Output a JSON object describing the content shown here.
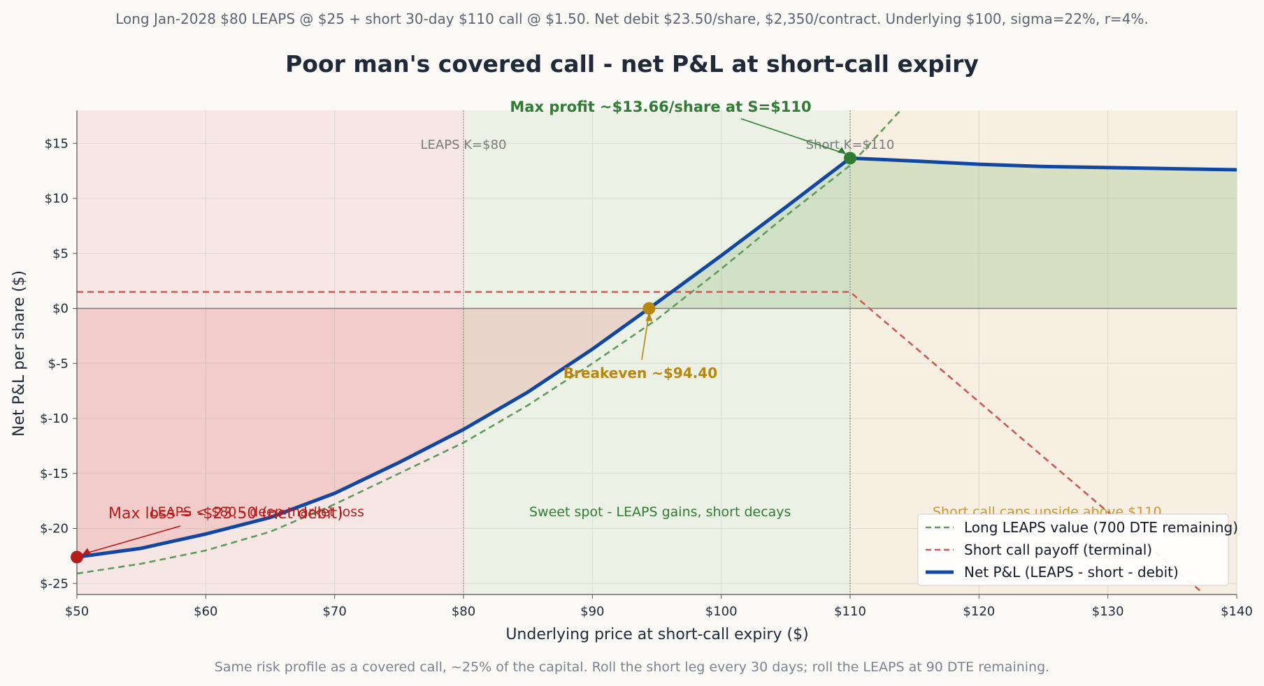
{
  "header": {
    "subtitle": "Long Jan-2028 $80 LEAPS @ $25 + short 30-day $110 call @ $1.50. Net debit $23.50/share, $2,350/contract. Underlying $100, sigma=22%, r=4%.",
    "footer": "Same risk profile as a covered call, ~25% of the capital. Roll the short leg every 30 days; roll the LEAPS at 90 DTE remaining."
  },
  "colors": {
    "net": "#0f47a1",
    "leaps": "#5e9a5a",
    "short": "#cc5a52",
    "profit_marker": "#2e7d32",
    "breakeven_marker": "#b8860b",
    "loss_marker": "#b71c1c",
    "region_loss": "#f6e6e4",
    "region_sweet": "#ecf1e5",
    "region_cap": "#f7efe1"
  },
  "chart_data": {
    "type": "line",
    "title": "Poor man's covered call - net P&L at short-call expiry",
    "xlabel": "Underlying price at short-call expiry ($)",
    "ylabel": "Net P&L per share ($)",
    "xlim": [
      50,
      140
    ],
    "ylim": [
      -26,
      18
    ],
    "xticks": [
      50,
      60,
      70,
      80,
      90,
      100,
      110,
      120,
      130,
      140
    ],
    "xtick_labels": [
      "$50",
      "$60",
      "$70",
      "$80",
      "$90",
      "$100",
      "$110",
      "$120",
      "$130",
      "$140"
    ],
    "yticks": [
      15,
      10,
      5,
      0,
      -5,
      -10,
      -15,
      -20,
      -25
    ],
    "ytick_labels": [
      "$15",
      "$10",
      "$5",
      "$0",
      "$-5",
      "$-10",
      "$-15",
      "$-20",
      "$-25"
    ],
    "grid": true,
    "legend_position": "bottom-right",
    "series": [
      {
        "name": "Long LEAPS value (700 DTE remaining)",
        "style": "dashed",
        "x": [
          50,
          55,
          60,
          65,
          70,
          75,
          80,
          85,
          90,
          95,
          100,
          105,
          110,
          113.9
        ],
        "y": [
          -24.1,
          -23.2,
          -22.0,
          -20.3,
          -17.8,
          -15.0,
          -12.2,
          -8.8,
          -5.0,
          -1.0,
          3.6,
          8.4,
          13.0,
          18.0
        ]
      },
      {
        "name": "Short call payoff (terminal)",
        "style": "dashed",
        "x": [
          50,
          110,
          137.3
        ],
        "y": [
          1.5,
          1.5,
          -25.8
        ]
      },
      {
        "name": "Net P&L (LEAPS - short - debit)",
        "style": "solid",
        "x": [
          50,
          55,
          60,
          65,
          70,
          75,
          80,
          85,
          90,
          94.4,
          100,
          105,
          110,
          115,
          120,
          125,
          130,
          135,
          140
        ],
        "y": [
          -22.6,
          -21.8,
          -20.5,
          -19.0,
          -16.8,
          -14.0,
          -11.0,
          -7.6,
          -3.7,
          0.0,
          4.8,
          9.2,
          13.66,
          13.4,
          13.1,
          12.9,
          12.8,
          12.7,
          12.6
        ]
      }
    ],
    "reference_lines": [
      {
        "x": 80,
        "label": "LEAPS K=$80"
      },
      {
        "x": 110,
        "label": "Short K=$110"
      }
    ],
    "regions": [
      {
        "from": 50,
        "to": 80,
        "label": "LEAPS < $80 - deep market loss"
      },
      {
        "from": 80,
        "to": 110,
        "label": "Sweet spot - LEAPS gains, short decays"
      },
      {
        "from": 110,
        "to": 140,
        "label": "Short call caps upside above $110"
      }
    ],
    "annotations": [
      {
        "text": "Max profit ~$13.66/share at S=$110",
        "x": 110,
        "y": 13.66
      },
      {
        "text": "Breakeven ~$94.40",
        "x": 94.4,
        "y": 0
      },
      {
        "text": "Max loss = -$23.50 (net debit)",
        "x": 50,
        "y": -22.6
      }
    ]
  }
}
